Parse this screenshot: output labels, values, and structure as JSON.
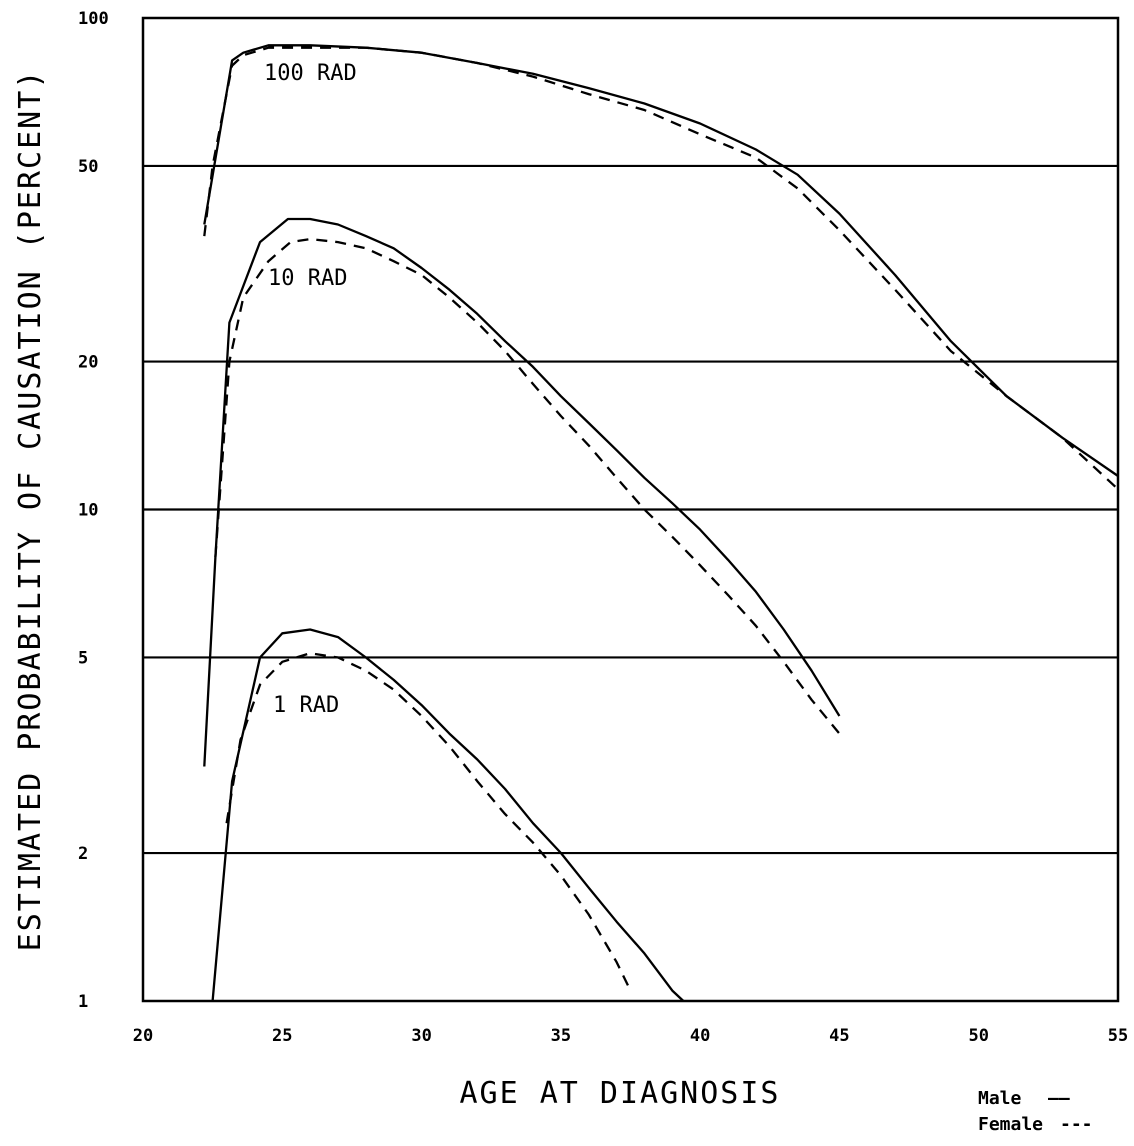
{
  "chart_data": {
    "type": "line",
    "title": "",
    "xlabel": "AGE AT DIAGNOSIS",
    "ylabel": "ESTIMATED PROBABILITY OF CAUSATION (PERCENT)",
    "xlim": [
      20,
      55
    ],
    "ylim": [
      1,
      100
    ],
    "yscale": "log",
    "grid": "horizontal",
    "x_ticks": [
      20,
      25,
      30,
      35,
      40,
      45,
      50,
      55
    ],
    "x_tick_labels": [
      "20",
      "25",
      "30",
      "35",
      "40",
      "45",
      "50",
      "55"
    ],
    "y_ticks": [
      1,
      2,
      5,
      10,
      20,
      50,
      100
    ],
    "y_tick_labels": [
      "1",
      "2",
      "5",
      "10",
      "20",
      "50",
      "100"
    ],
    "legend": [
      {
        "label": "Male",
        "marker": "——",
        "style": "solid"
      },
      {
        "label": "Female",
        "marker": "---",
        "style": "dashed"
      }
    ],
    "legend_position": "bottom-right",
    "series": [
      {
        "dose_label": "100 RAD",
        "sex": "Male",
        "style": "solid",
        "x": [
          22.2,
          23.2,
          23.6,
          24.5,
          26.0,
          28.0,
          30.0,
          32.0,
          34.0,
          36.0,
          38.0,
          40.0,
          42.0,
          43.5,
          45.0,
          47.0,
          49.0,
          51.0,
          53.0,
          55.0
        ],
        "y": [
          38,
          82,
          85,
          88,
          88,
          87,
          85,
          81,
          77,
          72,
          67,
          61,
          54,
          48,
          40,
          30,
          22,
          17,
          14,
          11.7
        ]
      },
      {
        "dose_label": "100 RAD",
        "sex": "Female",
        "style": "dashed",
        "x": [
          22.2,
          22.5,
          23.2,
          23.6,
          24.5,
          26.0,
          28.0,
          30.0,
          32.0,
          34.0,
          36.0,
          38.0,
          40.0,
          42.0,
          43.5,
          45.0,
          47.0,
          49.0,
          51.0,
          53.0,
          55.0
        ],
        "y": [
          36,
          50,
          80,
          84,
          87,
          87,
          87,
          85,
          81,
          76,
          70,
          65,
          58,
          52,
          45,
          37,
          28,
          21,
          17,
          14,
          11.0
        ]
      },
      {
        "dose_label": "10 RAD",
        "sex": "Male",
        "style": "solid",
        "x": [
          22.2,
          22.6,
          23.1,
          24.2,
          25.2,
          26.0,
          27.0,
          28.0,
          29.0,
          30.0,
          31.0,
          32.0,
          33.0,
          34.0,
          35.0,
          36.0,
          37.0,
          38.0,
          39.0,
          40.0,
          41.0,
          42.0,
          43.0,
          44.0,
          45.0
        ],
        "y": [
          3.0,
          8.0,
          24,
          35,
          39,
          39,
          38,
          36,
          34,
          31,
          28,
          25,
          22,
          19.5,
          17,
          15,
          13.2,
          11.6,
          10.3,
          9.1,
          7.9,
          6.8,
          5.7,
          4.7,
          3.8
        ]
      },
      {
        "dose_label": "10 RAD",
        "sex": "Female",
        "style": "dashed",
        "x": [
          22.6,
          23.1,
          23.6,
          24.5,
          25.3,
          26.0,
          27.0,
          28.0,
          29.0,
          30.0,
          31.0,
          32.0,
          33.0,
          34.0,
          35.0,
          36.0,
          37.0,
          38.0,
          39.0,
          40.0,
          41.0,
          42.0,
          43.0,
          44.0,
          45.0
        ],
        "y": [
          8.0,
          20,
          27,
          32,
          35,
          35.5,
          35,
          34,
          32,
          30,
          27,
          24,
          21,
          18,
          15.5,
          13.5,
          11.6,
          10,
          8.8,
          7.7,
          6.7,
          5.8,
          4.9,
          4.1,
          3.5
        ]
      },
      {
        "dose_label": "1 RAD",
        "sex": "Male",
        "style": "solid",
        "x": [
          22.5,
          23.2,
          24.2,
          25.0,
          26.0,
          27.0,
          28.0,
          29.0,
          30.0,
          31.0,
          32.0,
          33.0,
          34.0,
          35.0,
          36.0,
          37.0,
          38.0,
          39.0,
          39.4
        ],
        "y": [
          1.0,
          2.8,
          5.0,
          5.6,
          5.7,
          5.5,
          5.0,
          4.5,
          4.0,
          3.5,
          3.1,
          2.7,
          2.3,
          2.0,
          1.7,
          1.45,
          1.25,
          1.05,
          1.0
        ]
      },
      {
        "dose_label": "1 RAD",
        "sex": "Female",
        "style": "dashed",
        "x": [
          23.0,
          23.5,
          24.2,
          25.0,
          26.0,
          27.0,
          28.0,
          29.0,
          30.0,
          31.0,
          32.0,
          33.0,
          34.0,
          35.0,
          36.0,
          37.0,
          37.5
        ],
        "y": [
          2.3,
          3.4,
          4.4,
          4.9,
          5.1,
          5.0,
          4.7,
          4.3,
          3.8,
          3.3,
          2.8,
          2.4,
          2.1,
          1.8,
          1.5,
          1.2,
          1.05
        ]
      }
    ]
  },
  "series_labels": {
    "rad100": "100 RAD",
    "rad10": "10 RAD",
    "rad1": "1 RAD"
  },
  "colors": {
    "line": "#000000",
    "background": "#ffffff"
  }
}
